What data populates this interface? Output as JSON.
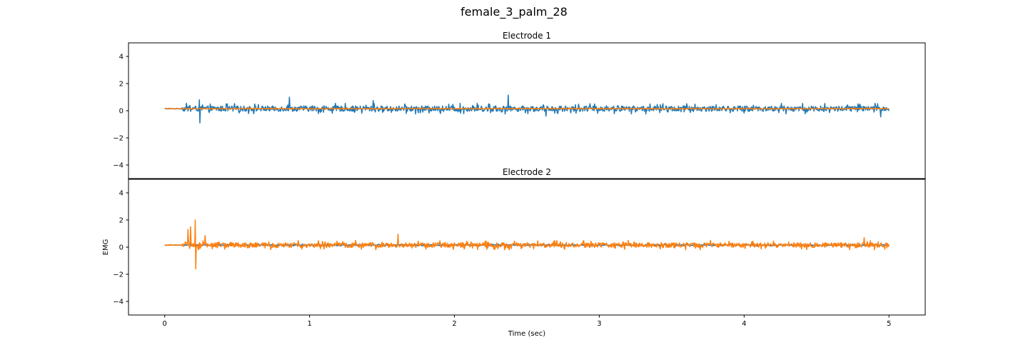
{
  "figure": {
    "title": "female_3_palm_28",
    "xlabel": "Time (sec)",
    "ylabel": "EMG"
  },
  "chart_data": [
    {
      "type": "line",
      "title": "Electrode 1",
      "xlim": [
        -0.25,
        5.25
      ],
      "ylim": [
        -5,
        5
      ],
      "xticks": [
        0,
        1,
        2,
        3,
        4,
        5
      ],
      "yticks": [
        -4,
        -2,
        0,
        2,
        4
      ],
      "grid": false,
      "series": [
        {
          "color": "#1f77b4",
          "x_range": [
            0,
            5
          ],
          "baseline": 0.15,
          "typical_amplitude": 0.25,
          "peaks": [
            [
              0.24,
              0.8
            ],
            [
              0.24,
              -0.9
            ],
            [
              0.86,
              1.0
            ],
            [
              2.37,
              1.15
            ],
            [
              1.44,
              0.75
            ],
            [
              2.63,
              -0.4
            ],
            [
              4.94,
              -0.45
            ]
          ]
        },
        {
          "color": "#ff7f0e",
          "x_range": [
            0,
            5
          ],
          "baseline": 0.15,
          "typical_amplitude": 0.03,
          "peaks": []
        }
      ]
    },
    {
      "type": "line",
      "title": "Electrode 2",
      "xlim": [
        -0.25,
        5.25
      ],
      "ylim": [
        -5,
        5
      ],
      "xticks": [
        0,
        1,
        2,
        3,
        4,
        5
      ],
      "yticks": [
        -4,
        -2,
        0,
        2,
        4
      ],
      "grid": false,
      "series": [
        {
          "color": "#1f77b4",
          "x_range": [
            0,
            5
          ],
          "baseline": 0.15,
          "typical_amplitude": 0.05,
          "peaks": []
        },
        {
          "color": "#ff7f0e",
          "x_range": [
            0,
            5
          ],
          "baseline": 0.15,
          "typical_amplitude": 0.22,
          "peaks": [
            [
              0.21,
              2.0
            ],
            [
              0.21,
              -1.6
            ],
            [
              0.18,
              1.5
            ],
            [
              0.16,
              1.3
            ],
            [
              0.28,
              0.85
            ],
            [
              1.61,
              0.95
            ],
            [
              4.83,
              0.7
            ]
          ]
        }
      ]
    }
  ]
}
